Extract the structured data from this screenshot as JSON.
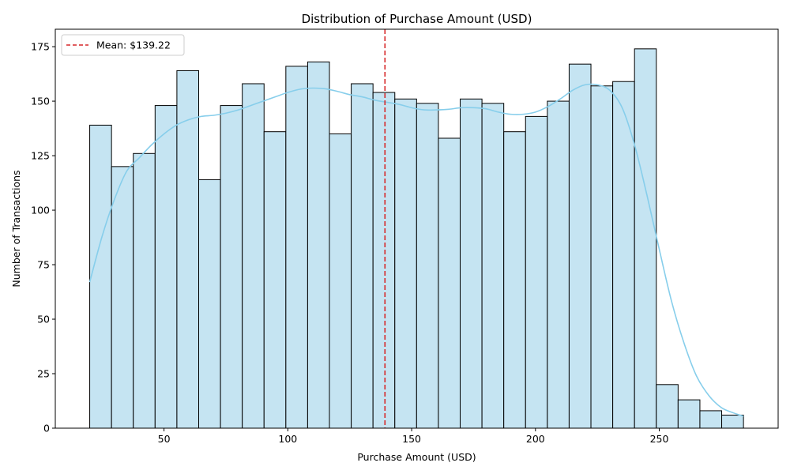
{
  "chart_data": {
    "type": "bar",
    "title": "Distribution of Purchase Amount (USD)",
    "xlabel": "Purchase Amount (USD)",
    "ylabel": "Number of Transactions",
    "xlim": [
      6.1,
      298
    ],
    "ylim": [
      0,
      183
    ],
    "xticks": [
      50,
      100,
      150,
      200,
      250
    ],
    "yticks": [
      0,
      25,
      50,
      75,
      100,
      125,
      150,
      175
    ],
    "grid": false,
    "legend_position": "top-left",
    "bins": {
      "start": 20,
      "width": 8.8,
      "counts": [
        139,
        120,
        126,
        148,
        164,
        114,
        148,
        158,
        136,
        166,
        168,
        135,
        158,
        154,
        151,
        149,
        133,
        151,
        149,
        136,
        143,
        150,
        167,
        157,
        159,
        174,
        20,
        13,
        8,
        6
      ]
    },
    "kde": {
      "x": [
        20,
        25,
        30,
        35,
        40,
        45,
        50,
        55,
        60,
        65,
        70,
        75,
        80,
        85,
        90,
        95,
        100,
        105,
        110,
        115,
        120,
        125,
        130,
        135,
        140,
        145,
        150,
        155,
        160,
        165,
        170,
        175,
        180,
        185,
        190,
        195,
        200,
        205,
        210,
        215,
        220,
        225,
        230,
        235,
        240,
        245,
        250,
        255,
        260,
        265,
        270,
        275,
        280,
        284
      ],
      "y": [
        67,
        88,
        105,
        118,
        124,
        130,
        135,
        139,
        141.5,
        143,
        143.5,
        144.5,
        146,
        148,
        150,
        152,
        154,
        155.5,
        156,
        155.7,
        154.5,
        153,
        152,
        150.5,
        149.5,
        148.5,
        147,
        146,
        146,
        146.3,
        147,
        147,
        146.5,
        145,
        144,
        144,
        145,
        147.5,
        151,
        155,
        157.5,
        157.5,
        155,
        147,
        130,
        107,
        82,
        58,
        39,
        24,
        15,
        9.5,
        7,
        5.5
      ]
    },
    "mean": {
      "value": 139.22,
      "label": "Mean: $139.22"
    },
    "colors": {
      "bar_fill": "#c5e4f2",
      "bar_edge": "#000000",
      "kde_line": "#87ceeb",
      "mean_line": "#d62728"
    }
  }
}
